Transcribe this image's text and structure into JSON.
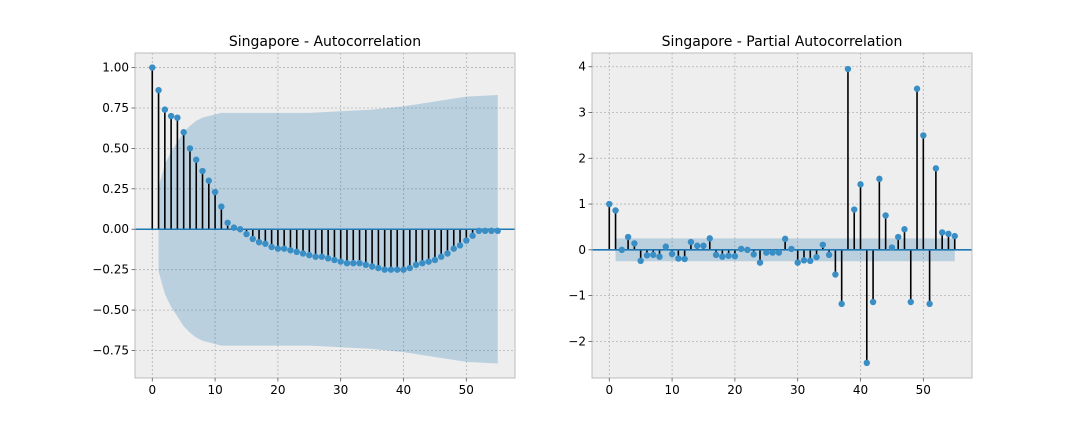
{
  "chart_data": [
    {
      "type": "stem",
      "title": "Singapore - Autocorrelation",
      "xlabel": "",
      "ylabel": "",
      "xlim": [
        -2.75,
        57.75
      ],
      "ylim": [
        -0.92,
        1.09
      ],
      "xticks": [
        0,
        10,
        20,
        30,
        40,
        50
      ],
      "yticks": [
        -0.75,
        -0.5,
        -0.25,
        0.0,
        0.25,
        0.5,
        0.75,
        1.0
      ],
      "ytick_labels": [
        "−0.75",
        "−0.50",
        "−0.25",
        "0.00",
        "0.25",
        "0.50",
        "0.75",
        "1.00"
      ],
      "grid": true,
      "lags": [
        0,
        1,
        2,
        3,
        4,
        5,
        6,
        7,
        8,
        9,
        10,
        11,
        12,
        13,
        14,
        15,
        16,
        17,
        18,
        19,
        20,
        21,
        22,
        23,
        24,
        25,
        26,
        27,
        28,
        29,
        30,
        31,
        32,
        33,
        34,
        35,
        36,
        37,
        38,
        39,
        40,
        41,
        42,
        43,
        44,
        45,
        46,
        47,
        48,
        49,
        50,
        51,
        52,
        53,
        54,
        55
      ],
      "values": [
        1.0,
        0.86,
        0.74,
        0.7,
        0.69,
        0.6,
        0.5,
        0.43,
        0.36,
        0.3,
        0.23,
        0.14,
        0.04,
        0.01,
        0.0,
        -0.03,
        -0.06,
        -0.08,
        -0.09,
        -0.11,
        -0.12,
        -0.12,
        -0.13,
        -0.14,
        -0.15,
        -0.16,
        -0.17,
        -0.17,
        -0.18,
        -0.19,
        -0.2,
        -0.21,
        -0.21,
        -0.21,
        -0.22,
        -0.23,
        -0.24,
        -0.25,
        -0.25,
        -0.25,
        -0.25,
        -0.24,
        -0.22,
        -0.21,
        -0.2,
        -0.19,
        -0.17,
        -0.15,
        -0.12,
        -0.1,
        -0.07,
        -0.04,
        -0.01,
        -0.01,
        -0.01,
        -0.01
      ],
      "confidence_band": {
        "lags": [
          1,
          2,
          3,
          4,
          5,
          6,
          7,
          8,
          9,
          10,
          11,
          12,
          14,
          16,
          18,
          20,
          25,
          30,
          35,
          40,
          45,
          50,
          55
        ],
        "upper": [
          0.26,
          0.4,
          0.48,
          0.54,
          0.6,
          0.64,
          0.67,
          0.69,
          0.7,
          0.71,
          0.72,
          0.72,
          0.72,
          0.72,
          0.72,
          0.72,
          0.72,
          0.73,
          0.74,
          0.76,
          0.79,
          0.82,
          0.83
        ]
      }
    },
    {
      "type": "stem",
      "title": "Singapore - Partial Autocorrelation",
      "xlabel": "",
      "ylabel": "",
      "xlim": [
        -2.75,
        57.75
      ],
      "ylim": [
        -2.8,
        4.3
      ],
      "xticks": [
        0,
        10,
        20,
        30,
        40,
        50
      ],
      "yticks": [
        -2,
        -1,
        0,
        1,
        2,
        3,
        4
      ],
      "ytick_labels": [
        "−2",
        "−1",
        "0",
        "1",
        "2",
        "3",
        "4"
      ],
      "grid": true,
      "lags": [
        0,
        1,
        2,
        3,
        4,
        5,
        6,
        7,
        8,
        9,
        10,
        11,
        12,
        13,
        14,
        15,
        16,
        17,
        18,
        19,
        20,
        21,
        22,
        23,
        24,
        25,
        26,
        27,
        28,
        29,
        30,
        31,
        32,
        33,
        34,
        35,
        36,
        37,
        38,
        39,
        40,
        41,
        42,
        43,
        44,
        45,
        46,
        47,
        48,
        49,
        50,
        51,
        52,
        53,
        54,
        55
      ],
      "values": [
        1.0,
        0.86,
        0.0,
        0.28,
        0.14,
        -0.24,
        -0.12,
        -0.11,
        -0.15,
        0.07,
        -0.09,
        -0.19,
        -0.2,
        0.17,
        0.09,
        0.09,
        0.25,
        -0.11,
        -0.15,
        -0.13,
        -0.14,
        0.02,
        0.0,
        -0.1,
        -0.28,
        -0.06,
        -0.06,
        -0.06,
        0.24,
        0.02,
        -0.28,
        -0.23,
        -0.24,
        -0.16,
        0.11,
        -0.11,
        -0.54,
        -1.18,
        3.95,
        0.88,
        1.43,
        -2.47,
        -1.14,
        1.55,
        0.75,
        0.05,
        0.28,
        0.45,
        -1.14,
        3.52,
        2.5,
        -1.18,
        1.78,
        0.38,
        0.35,
        0.3
      ],
      "confidence_band": {
        "lags": [
          1,
          55
        ],
        "upper": [
          0.25,
          0.25
        ]
      }
    }
  ]
}
